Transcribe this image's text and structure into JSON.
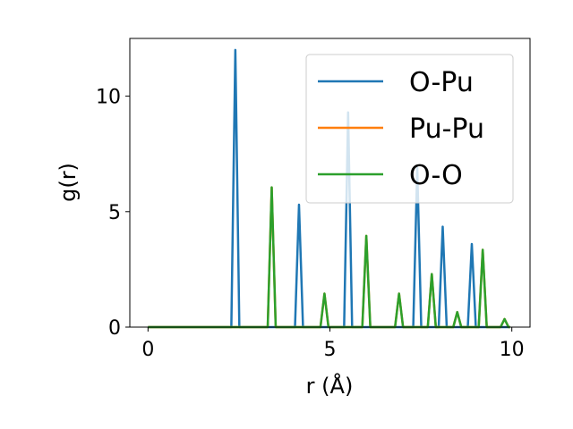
{
  "chart_data": {
    "type": "line",
    "title": "",
    "xlabel": "r (Å)",
    "ylabel": "g(r)",
    "xlim": [
      -0.5,
      10.5
    ],
    "ylim": [
      0,
      12.5
    ],
    "xticks": [
      0,
      5,
      10
    ],
    "yticks": [
      0,
      5,
      10
    ],
    "legend_position": "top-right",
    "series": [
      {
        "name": "O-Pu",
        "color": "#1f77b4",
        "peaks": [
          [
            2.4,
            12.0
          ],
          [
            4.15,
            5.3
          ],
          [
            5.5,
            9.3
          ],
          [
            7.4,
            6.9
          ],
          [
            8.1,
            4.35
          ],
          [
            8.9,
            3.6
          ]
        ]
      },
      {
        "name": "Pu-Pu",
        "color": "#ff7f0e",
        "peaks": [
          [
            3.4,
            6.05
          ],
          [
            4.85,
            1.45
          ],
          [
            6.0,
            3.95
          ],
          [
            6.9,
            1.45
          ],
          [
            7.8,
            2.3
          ],
          [
            8.5,
            0.65
          ],
          [
            9.2,
            3.35
          ],
          [
            9.8,
            0.35
          ]
        ]
      },
      {
        "name": "O-O",
        "color": "#2ca02c",
        "peaks": [
          [
            3.4,
            6.05
          ],
          [
            4.85,
            1.45
          ],
          [
            6.0,
            3.95
          ],
          [
            6.9,
            1.45
          ],
          [
            7.8,
            2.3
          ],
          [
            8.5,
            0.65
          ],
          [
            9.2,
            3.35
          ],
          [
            9.8,
            0.35
          ]
        ]
      }
    ]
  }
}
